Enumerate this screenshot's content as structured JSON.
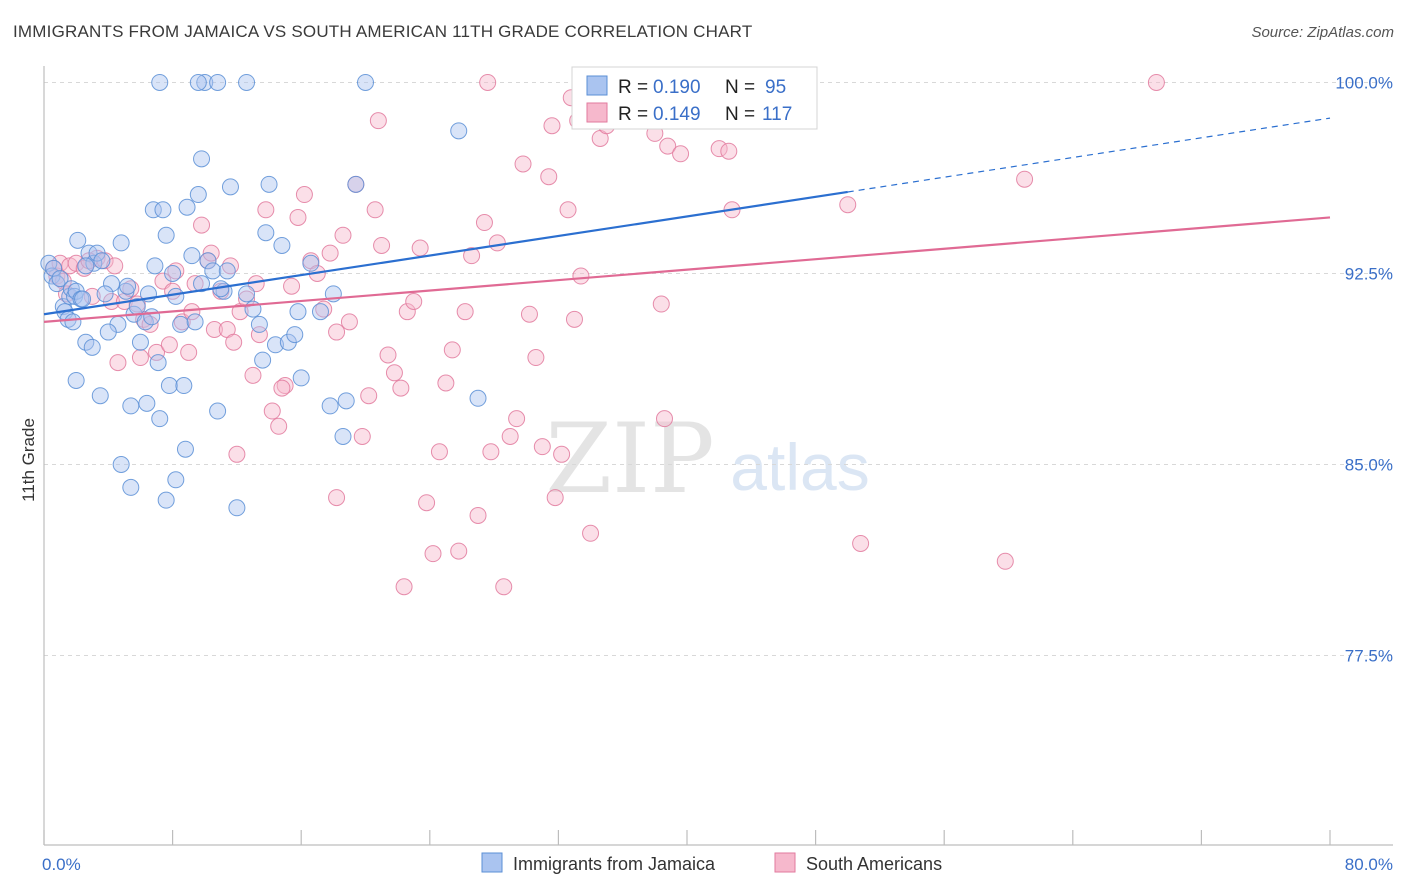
{
  "header": {
    "title": "IMMIGRANTS FROM JAMAICA VS SOUTH AMERICAN 11TH GRADE CORRELATION CHART",
    "source": "Source: ZipAtlas.com"
  },
  "watermark": {
    "zip": "ZIP",
    "atlas": "atlas"
  },
  "legend_top": {
    "rows": [
      {
        "r_label": "R =",
        "r_value": "0.190",
        "n_label": "N =",
        "n_value": "95"
      },
      {
        "r_label": "R =",
        "r_value": "0.149",
        "n_label": "N =",
        "n_value": "117"
      }
    ]
  },
  "legend_bottom": {
    "items": [
      "Immigrants from Jamaica",
      "South Americans"
    ]
  },
  "colors": {
    "jamaica_fill": "#aac4f0",
    "jamaica_stroke": "#5b8fd6",
    "jamaica_line": "#2b6fd0",
    "south_fill": "#f6b8cc",
    "south_stroke": "#e27a9e",
    "south_line": "#e06a94",
    "tick_label": "#3a6fc8",
    "grid": "#d8d8d8"
  },
  "chart_data": {
    "type": "scatter",
    "title": "IMMIGRANTS FROM JAMAICA VS SOUTH AMERICAN 11TH GRADE CORRELATION CHART",
    "xlabel": "",
    "ylabel": "11th Grade",
    "xlim": [
      0,
      80
    ],
    "ylim": [
      70,
      100
    ],
    "x_tick_labels": [
      "0.0%",
      "80.0%"
    ],
    "y_ticks": [
      77.5,
      85.0,
      92.5,
      100.0
    ],
    "y_tick_labels": [
      "77.5%",
      "85.0%",
      "92.5%",
      "100.0%"
    ],
    "grid": true,
    "series": [
      {
        "name": "Immigrants from Jamaica",
        "r": 0.19,
        "n": 95,
        "trend": {
          "x": [
            0,
            50
          ],
          "y": [
            90.9,
            95.7
          ],
          "dashed_to": [
            80,
            98.6
          ]
        },
        "points": [
          [
            0.3,
            92.9
          ],
          [
            0.5,
            92.4
          ],
          [
            0.6,
            92.7
          ],
          [
            0.8,
            92.1
          ],
          [
            1.0,
            92.3
          ],
          [
            1.2,
            91.2
          ],
          [
            1.3,
            91.0
          ],
          [
            1.5,
            90.7
          ],
          [
            1.6,
            91.6
          ],
          [
            1.7,
            91.9
          ],
          [
            1.9,
            91.6
          ],
          [
            2.0,
            91.8
          ],
          [
            2.1,
            93.8
          ],
          [
            2.3,
            91.5
          ],
          [
            2.4,
            91.5
          ],
          [
            2.6,
            89.8
          ],
          [
            2.8,
            93.3
          ],
          [
            3.0,
            89.6
          ],
          [
            3.1,
            92.9
          ],
          [
            3.3,
            93.3
          ],
          [
            3.5,
            87.7
          ],
          [
            4.2,
            92.1
          ],
          [
            4.6,
            90.5
          ],
          [
            4.8,
            93.7
          ],
          [
            5.1,
            91.8
          ],
          [
            5.2,
            92.0
          ],
          [
            5.4,
            87.3
          ],
          [
            5.6,
            90.9
          ],
          [
            6.0,
            89.8
          ],
          [
            6.3,
            90.6
          ],
          [
            6.5,
            91.7
          ],
          [
            6.7,
            90.8
          ],
          [
            6.8,
            95.0
          ],
          [
            6.9,
            92.8
          ],
          [
            7.1,
            89.0
          ],
          [
            7.2,
            86.8
          ],
          [
            7.4,
            95.0
          ],
          [
            7.6,
            94.0
          ],
          [
            7.8,
            88.1
          ],
          [
            8.0,
            92.5
          ],
          [
            8.2,
            91.6
          ],
          [
            8.5,
            90.5
          ],
          [
            8.7,
            88.1
          ],
          [
            8.9,
            95.1
          ],
          [
            9.2,
            93.2
          ],
          [
            9.4,
            90.6
          ],
          [
            9.6,
            95.6
          ],
          [
            9.8,
            92.1
          ],
          [
            10.2,
            93.0
          ],
          [
            10.5,
            92.6
          ],
          [
            10.8,
            87.1
          ],
          [
            11.2,
            91.8
          ],
          [
            11.4,
            92.6
          ],
          [
            11.6,
            95.9
          ],
          [
            12.0,
            83.3
          ],
          [
            12.6,
            91.7
          ],
          [
            13.0,
            91.1
          ],
          [
            13.6,
            89.1
          ],
          [
            13.8,
            94.1
          ],
          [
            14.0,
            96.0
          ],
          [
            14.4,
            89.7
          ],
          [
            14.8,
            93.6
          ],
          [
            15.2,
            89.8
          ],
          [
            15.6,
            90.1
          ],
          [
            16.0,
            88.4
          ],
          [
            16.6,
            92.9
          ],
          [
            17.2,
            91.0
          ],
          [
            17.8,
            87.3
          ],
          [
            18.0,
            91.7
          ],
          [
            18.6,
            86.1
          ],
          [
            18.8,
            87.5
          ],
          [
            19.4,
            96.0
          ],
          [
            10.0,
            100.0
          ],
          [
            9.6,
            100.0
          ],
          [
            10.8,
            100.0
          ],
          [
            12.6,
            100.0
          ],
          [
            20.0,
            100.0
          ],
          [
            7.2,
            100.0
          ],
          [
            25.8,
            98.1
          ],
          [
            27.0,
            87.6
          ],
          [
            4.8,
            85.0
          ],
          [
            5.4,
            84.1
          ],
          [
            7.6,
            83.6
          ],
          [
            8.8,
            85.6
          ],
          [
            8.2,
            84.4
          ],
          [
            2.0,
            88.3
          ],
          [
            1.8,
            90.6
          ],
          [
            6.4,
            87.4
          ],
          [
            11.0,
            91.9
          ],
          [
            3.8,
            91.7
          ],
          [
            5.8,
            91.2
          ],
          [
            4.0,
            90.2
          ],
          [
            13.4,
            90.5
          ],
          [
            15.8,
            91.0
          ],
          [
            9.8,
            97.0
          ],
          [
            2.6,
            92.8
          ],
          [
            3.6,
            93.0
          ]
        ]
      },
      {
        "name": "South Americans",
        "r": 0.149,
        "n": 117,
        "trend": {
          "x": [
            0,
            80
          ],
          "y": [
            90.6,
            94.7
          ]
        },
        "points": [
          [
            0.6,
            92.7
          ],
          [
            0.8,
            92.4
          ],
          [
            1.0,
            92.9
          ],
          [
            1.2,
            92.2
          ],
          [
            1.4,
            91.7
          ],
          [
            1.6,
            92.8
          ],
          [
            2.0,
            92.9
          ],
          [
            2.5,
            92.7
          ],
          [
            3.0,
            91.6
          ],
          [
            3.3,
            93.1
          ],
          [
            3.8,
            93.0
          ],
          [
            4.2,
            91.4
          ],
          [
            4.6,
            89.0
          ],
          [
            5.0,
            91.4
          ],
          [
            5.4,
            91.9
          ],
          [
            5.8,
            91.3
          ],
          [
            6.2,
            90.7
          ],
          [
            6.6,
            90.5
          ],
          [
            7.0,
            89.4
          ],
          [
            7.4,
            92.2
          ],
          [
            7.8,
            89.7
          ],
          [
            8.2,
            92.6
          ],
          [
            8.6,
            90.6
          ],
          [
            9.0,
            89.4
          ],
          [
            9.4,
            92.1
          ],
          [
            9.8,
            94.4
          ],
          [
            10.2,
            93.0
          ],
          [
            10.6,
            90.3
          ],
          [
            11.0,
            91.8
          ],
          [
            11.4,
            90.3
          ],
          [
            11.8,
            89.8
          ],
          [
            12.2,
            91.0
          ],
          [
            12.6,
            91.5
          ],
          [
            13.0,
            88.5
          ],
          [
            13.4,
            90.1
          ],
          [
            13.8,
            95.0
          ],
          [
            14.2,
            87.1
          ],
          [
            14.6,
            86.5
          ],
          [
            15.0,
            88.1
          ],
          [
            15.4,
            92.0
          ],
          [
            15.8,
            94.7
          ],
          [
            16.2,
            95.6
          ],
          [
            16.6,
            93.0
          ],
          [
            17.0,
            92.5
          ],
          [
            17.4,
            91.1
          ],
          [
            17.8,
            93.3
          ],
          [
            18.2,
            90.2
          ],
          [
            18.6,
            94.0
          ],
          [
            19.0,
            90.6
          ],
          [
            19.4,
            96.0
          ],
          [
            19.8,
            86.1
          ],
          [
            20.2,
            87.7
          ],
          [
            20.6,
            95.0
          ],
          [
            21.0,
            93.6
          ],
          [
            21.4,
            89.3
          ],
          [
            21.8,
            88.6
          ],
          [
            22.2,
            88.0
          ],
          [
            22.6,
            91.0
          ],
          [
            23.0,
            91.4
          ],
          [
            23.4,
            93.5
          ],
          [
            23.8,
            83.5
          ],
          [
            24.2,
            81.5
          ],
          [
            24.6,
            85.5
          ],
          [
            25.0,
            88.2
          ],
          [
            25.4,
            89.5
          ],
          [
            25.8,
            81.6
          ],
          [
            26.2,
            91.0
          ],
          [
            26.6,
            93.2
          ],
          [
            27.0,
            83.0
          ],
          [
            27.4,
            94.5
          ],
          [
            27.8,
            85.5
          ],
          [
            28.2,
            93.7
          ],
          [
            28.6,
            80.2
          ],
          [
            29.0,
            86.1
          ],
          [
            29.4,
            86.8
          ],
          [
            29.8,
            96.8
          ],
          [
            30.2,
            90.9
          ],
          [
            30.6,
            89.2
          ],
          [
            31.0,
            85.7
          ],
          [
            31.4,
            96.3
          ],
          [
            31.8,
            83.7
          ],
          [
            32.2,
            85.4
          ],
          [
            32.6,
            95.0
          ],
          [
            33.0,
            90.7
          ],
          [
            33.4,
            92.4
          ],
          [
            34.0,
            82.3
          ],
          [
            34.6,
            97.8
          ],
          [
            35.0,
            98.3
          ],
          [
            38.8,
            97.5
          ],
          [
            39.6,
            97.2
          ],
          [
            38.0,
            98.0
          ],
          [
            33.2,
            98.5
          ],
          [
            34.4,
            99.0
          ],
          [
            31.6,
            98.3
          ],
          [
            20.8,
            98.5
          ],
          [
            27.6,
            100.0
          ],
          [
            32.8,
            99.4
          ],
          [
            40.0,
            100.0
          ],
          [
            42.0,
            97.4
          ],
          [
            42.6,
            97.3
          ],
          [
            38.4,
            91.3
          ],
          [
            38.6,
            86.8
          ],
          [
            42.8,
            95.0
          ],
          [
            50.0,
            95.2
          ],
          [
            50.8,
            81.9
          ],
          [
            59.8,
            81.2
          ],
          [
            61.0,
            96.2
          ],
          [
            69.2,
            100.0
          ],
          [
            22.4,
            80.2
          ],
          [
            18.2,
            83.7
          ],
          [
            12.0,
            85.4
          ],
          [
            14.8,
            88.0
          ],
          [
            10.4,
            93.3
          ],
          [
            9.2,
            91.0
          ],
          [
            6.0,
            89.2
          ],
          [
            8.0,
            91.8
          ],
          [
            4.4,
            92.8
          ],
          [
            2.8,
            93.0
          ],
          [
            11.6,
            92.8
          ],
          [
            13.2,
            92.1
          ]
        ]
      }
    ]
  }
}
